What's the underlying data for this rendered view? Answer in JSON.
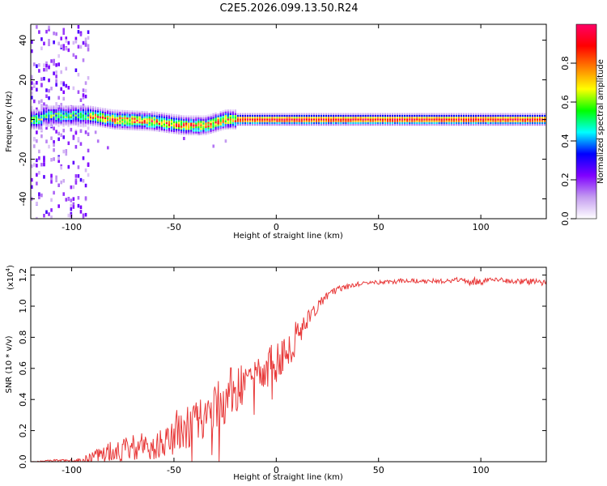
{
  "title": "C2E5.2026.099.13.50.R24",
  "chart_data": [
    {
      "type": "heatmap",
      "name": "spectrogram",
      "xlabel": "Height of straight line (km)",
      "ylabel": "Frequency (Hz)",
      "xlim": [
        -120,
        132
      ],
      "ylim": [
        -50,
        48
      ],
      "xticks": [
        "-100",
        "-50",
        "0",
        "50",
        "100"
      ],
      "xtick_values": [
        -100,
        -50,
        0,
        50,
        100
      ],
      "yticks": [
        "-40",
        "-20",
        "0",
        "20",
        "40"
      ],
      "ytick_values": [
        -40,
        -20,
        0,
        20,
        40
      ],
      "grid": false,
      "description_points": {
        "ridge_center_hz": [
          {
            "x": -115,
            "y": 2
          },
          {
            "x": -100,
            "y": 2
          },
          {
            "x": -92,
            "y": 2
          },
          {
            "x": -80,
            "y": 0
          },
          {
            "x": -60,
            "y": -1
          },
          {
            "x": -45,
            "y": -3
          },
          {
            "x": -35,
            "y": -3
          },
          {
            "x": -25,
            "y": 0
          },
          {
            "x": 0,
            "y": 0
          },
          {
            "x": 50,
            "y": 0
          },
          {
            "x": 100,
            "y": 0
          },
          {
            "x": 132,
            "y": 0
          }
        ]
      },
      "colorbar": {
        "label": "Normalized spectral amplitude",
        "ticks": [
          "0.0",
          "0.2",
          "0.4",
          "0.6",
          "0.8"
        ],
        "tick_values": [
          0.0,
          0.2,
          0.4,
          0.6,
          0.8
        ],
        "range": [
          0,
          1
        ],
        "colors": [
          "#ffffff",
          "#c49cf0",
          "#7f00ff",
          "#0000ff",
          "#00ffff",
          "#00ff00",
          "#ffff00",
          "#ff7f00",
          "#ff0000",
          "#ff0066"
        ]
      }
    },
    {
      "type": "line",
      "name": "snr",
      "xlabel": "Height of straight line (km)",
      "ylabel": "SNR (10 * v/v)",
      "scale_label": "(x10",
      "scale_exp": "4",
      "scale_close": ")",
      "xlim": [
        -120,
        132
      ],
      "ylim": [
        0,
        1.25
      ],
      "xticks": [
        "-100",
        "-50",
        "0",
        "50",
        "100"
      ],
      "xtick_values": [
        -100,
        -50,
        0,
        50,
        100
      ],
      "yticks": [
        "0.0",
        "0.2",
        "0.4",
        "0.6",
        "0.8",
        "1.0",
        "1.2"
      ],
      "ytick_values": [
        0.0,
        0.2,
        0.4,
        0.6,
        0.8,
        1.0,
        1.2
      ],
      "color": "#e83a3a",
      "grid": false,
      "series": [
        {
          "name": "SNR",
          "x": [
            -120,
            -110,
            -100,
            -95,
            -90,
            -85,
            -80,
            -75,
            -70,
            -65,
            -60,
            -55,
            -50,
            -45,
            -40,
            -35,
            -30,
            -25,
            -20,
            -15,
            -10,
            -5,
            0,
            5,
            10,
            15,
            20,
            25,
            30,
            35,
            40,
            45,
            50,
            60,
            70,
            80,
            90,
            95,
            100,
            110,
            120,
            125,
            132
          ],
          "envelope": [
            0.0,
            0.01,
            0.015,
            0.02,
            0.05,
            0.08,
            0.12,
            0.13,
            0.14,
            0.15,
            0.17,
            0.2,
            0.25,
            0.3,
            0.32,
            0.36,
            0.47,
            0.52,
            0.57,
            0.6,
            0.64,
            0.67,
            0.72,
            0.77,
            0.86,
            0.94,
            1.02,
            1.08,
            1.12,
            1.14,
            1.15,
            1.16,
            1.16,
            1.17,
            1.17,
            1.17,
            1.18,
            1.18,
            1.17,
            1.18,
            1.17,
            1.17,
            1.16
          ],
          "noise": [
            0.0,
            0.008,
            0.01,
            0.02,
            0.05,
            0.06,
            0.07,
            0.08,
            0.08,
            0.09,
            0.1,
            0.11,
            0.13,
            0.14,
            0.14,
            0.14,
            0.16,
            0.17,
            0.17,
            0.17,
            0.16,
            0.15,
            0.14,
            0.12,
            0.1,
            0.06,
            0.04,
            0.03,
            0.02,
            0.02,
            0.015,
            0.015,
            0.015,
            0.015,
            0.015,
            0.015,
            0.015,
            0.03,
            0.02,
            0.02,
            0.02,
            0.02,
            0.02
          ]
        }
      ]
    }
  ]
}
